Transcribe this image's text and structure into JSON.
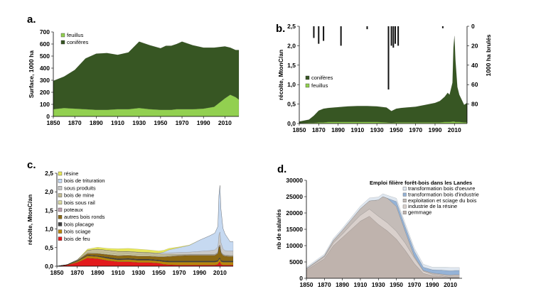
{
  "chart_data": [
    {
      "panel": "a.",
      "type": "area",
      "ylabel": "Surface, 1000 ha",
      "xlim": [
        1850,
        2023
      ],
      "ylim": [
        0,
        700
      ],
      "xticks": [
        1850,
        1870,
        1890,
        1910,
        1930,
        1950,
        1970,
        1990,
        2010
      ],
      "yticks": [
        0,
        100,
        200,
        300,
        400,
        500,
        600,
        700
      ],
      "legend": [
        {
          "name": "feuillus",
          "color": "#92d050"
        },
        {
          "name": "conifères",
          "color": "#375623"
        }
      ],
      "x": [
        1850,
        1860,
        1870,
        1880,
        1890,
        1900,
        1910,
        1920,
        1930,
        1940,
        1950,
        1955,
        1960,
        1965,
        1970,
        1980,
        1990,
        2000,
        2010,
        2015,
        2020,
        2023
      ],
      "series": [
        {
          "name": "feuillus",
          "color": "#92d050",
          "values": [
            60,
            70,
            65,
            60,
            55,
            55,
            60,
            60,
            70,
            60,
            55,
            55,
            55,
            60,
            60,
            60,
            65,
            80,
            150,
            180,
            160,
            140
          ]
        },
        {
          "name": "conifères",
          "color": "#375623",
          "values": [
            235,
            260,
            320,
            420,
            465,
            470,
            450,
            470,
            550,
            530,
            510,
            530,
            530,
            540,
            560,
            530,
            505,
            490,
            430,
            390,
            390,
            410
          ]
        }
      ]
    },
    {
      "panel": "b.",
      "type": "area",
      "ylabel": "récolte, MtonC/an",
      "y2label": "1000 ha brulés",
      "xlim": [
        1850,
        2023
      ],
      "ylim": [
        0,
        2.5
      ],
      "y2lim": [
        0,
        100
      ],
      "xticks": [
        1850,
        1870,
        1890,
        1910,
        1930,
        1950,
        1970,
        1990,
        2010
      ],
      "yticks": [
        "0,0",
        "0,5",
        "1,0",
        "1,5",
        "2,0",
        "2,5"
      ],
      "y2ticks": [
        0,
        20,
        40,
        60,
        80
      ],
      "legend": [
        {
          "name": "conifères",
          "color": "#375623"
        },
        {
          "name": "feuillus",
          "color": "#92d050"
        }
      ],
      "x": [
        1850,
        1860,
        1865,
        1870,
        1875,
        1880,
        1890,
        1900,
        1910,
        1920,
        1930,
        1940,
        1945,
        1950,
        1955,
        1960,
        1970,
        1980,
        1990,
        1995,
        2000,
        2003,
        2005,
        2008,
        2009,
        2010,
        2011,
        2013,
        2015,
        2020,
        2023
      ],
      "series": [
        {
          "name": "feuillus",
          "color": "#92d050",
          "values": [
            0.01,
            0.02,
            0.02,
            0.03,
            0.03,
            0.04,
            0.04,
            0.04,
            0.04,
            0.04,
            0.04,
            0.03,
            0.02,
            0.03,
            0.03,
            0.03,
            0.03,
            0.03,
            0.03,
            0.03,
            0.04,
            0.04,
            0.04,
            0.05,
            0.05,
            0.05,
            0.04,
            0.04,
            0.04,
            0.03,
            0.03
          ]
        },
        {
          "name": "conifères",
          "color": "#375623",
          "values": [
            0.04,
            0.08,
            0.18,
            0.3,
            0.35,
            0.36,
            0.38,
            0.4,
            0.41,
            0.41,
            0.4,
            0.38,
            0.3,
            0.35,
            0.37,
            0.38,
            0.4,
            0.45,
            0.5,
            0.55,
            0.65,
            0.75,
            0.7,
            1.0,
            1.9,
            2.2,
            1.6,
            0.9,
            0.7,
            0.45,
            0.5
          ]
        }
      ],
      "burned": {
        "x": [
          1865,
          1870,
          1875,
          1893,
          1920,
          1942,
          1945,
          1947,
          1949,
          1952,
          1998
        ],
        "values": [
          12,
          18,
          15,
          20,
          3,
          65,
          20,
          22,
          18,
          20,
          2
        ]
      }
    },
    {
      "panel": "c.",
      "type": "area",
      "ylabel": "récolte, MtonC/an",
      "xlim": [
        1850,
        2023
      ],
      "ylim": [
        0,
        2.5
      ],
      "xticks": [
        1850,
        1870,
        1890,
        1910,
        1930,
        1950,
        1970,
        1990,
        2010
      ],
      "yticks": [
        "0,0",
        "0,5",
        "1,0",
        "1,5",
        "2,0",
        "2,5"
      ],
      "x": [
        1850,
        1860,
        1870,
        1880,
        1890,
        1900,
        1910,
        1920,
        1930,
        1940,
        1950,
        1955,
        1960,
        1970,
        1980,
        1990,
        2000,
        2005,
        2008,
        2009,
        2010,
        2011,
        2013,
        2015,
        2020,
        2023
      ],
      "series": [
        {
          "name": "bois de feu",
          "color": "#e31a1c",
          "values": [
            0.0,
            0.03,
            0.1,
            0.22,
            0.2,
            0.15,
            0.12,
            0.12,
            0.1,
            0.1,
            0.08,
            0.05,
            0.04,
            0.03,
            0.03,
            0.03,
            0.03,
            0.03,
            0.05,
            0.1,
            0.12,
            0.05,
            0.03,
            0.03,
            0.03,
            0.03
          ]
        },
        {
          "name": "bois sciage",
          "color": "#b8860b",
          "values": [
            0.0,
            0.01,
            0.03,
            0.06,
            0.06,
            0.06,
            0.05,
            0.06,
            0.06,
            0.06,
            0.06,
            0.07,
            0.07,
            0.08,
            0.08,
            0.08,
            0.08,
            0.08,
            0.08,
            0.08,
            0.08,
            0.08,
            0.08,
            0.08,
            0.08,
            0.08
          ]
        },
        {
          "name": "bois placage",
          "color": "#404040",
          "values": [
            0.0,
            0.0,
            0.01,
            0.02,
            0.02,
            0.03,
            0.03,
            0.03,
            0.03,
            0.03,
            0.03,
            0.03,
            0.03,
            0.03,
            0.03,
            0.03,
            0.03,
            0.03,
            0.03,
            0.03,
            0.03,
            0.03,
            0.03,
            0.03,
            0.03,
            0.03
          ]
        },
        {
          "name": "autres bois ronds",
          "color": "#8b6914",
          "values": [
            0.0,
            0.0,
            0.01,
            0.04,
            0.06,
            0.07,
            0.08,
            0.08,
            0.08,
            0.08,
            0.08,
            0.1,
            0.12,
            0.14,
            0.15,
            0.15,
            0.15,
            0.15,
            0.18,
            0.3,
            0.3,
            0.2,
            0.15,
            0.13,
            0.12,
            0.12
          ]
        },
        {
          "name": "poteaux",
          "color": "#c0a0b0",
          "values": [
            0.0,
            0.0,
            0.0,
            0.01,
            0.01,
            0.01,
            0.01,
            0.01,
            0.01,
            0.01,
            0.01,
            0.01,
            0.01,
            0.01,
            0.01,
            0.01,
            0.01,
            0.01,
            0.01,
            0.02,
            0.02,
            0.01,
            0.01,
            0.01,
            0.01,
            0.01
          ]
        },
        {
          "name": "bois sous rail",
          "color": "#d9d9a0",
          "values": [
            0.0,
            0.0,
            0.0,
            0.02,
            0.03,
            0.03,
            0.03,
            0.03,
            0.03,
            0.03,
            0.02,
            0.02,
            0.02,
            0.01,
            0.01,
            0.01,
            0.01,
            0.01,
            0.01,
            0.01,
            0.01,
            0.01,
            0.01,
            0.01,
            0.01,
            0.01
          ]
        },
        {
          "name": "bois de mine",
          "color": "#c4bd97",
          "values": [
            0.0,
            0.0,
            0.02,
            0.06,
            0.08,
            0.08,
            0.08,
            0.06,
            0.06,
            0.05,
            0.05,
            0.04,
            0.03,
            0.02,
            0.01,
            0.01,
            0.01,
            0.01,
            0.01,
            0.01,
            0.01,
            0.01,
            0.01,
            0.01,
            0.01,
            0.01
          ]
        },
        {
          "name": "sous produits",
          "color": "#c8c8c8",
          "values": [
            0.0,
            0.0,
            0.0,
            0.0,
            0.0,
            0.0,
            0.0,
            0.01,
            0.01,
            0.01,
            0.02,
            0.03,
            0.04,
            0.05,
            0.06,
            0.08,
            0.1,
            0.12,
            0.15,
            0.3,
            0.35,
            0.25,
            0.15,
            0.12,
            0.12,
            0.12
          ]
        },
        {
          "name": "bois de trituration",
          "color": "#c6d9f1",
          "values": [
            0.0,
            0.0,
            0.0,
            0.0,
            0.0,
            0.0,
            0.0,
            0.0,
            0.0,
            0.0,
            0.0,
            0.03,
            0.08,
            0.13,
            0.18,
            0.3,
            0.4,
            0.45,
            0.55,
            1.05,
            1.25,
            0.9,
            0.55,
            0.45,
            0.25,
            0.25
          ]
        },
        {
          "name": "résine",
          "color": "#e8e85a",
          "values": [
            0.0,
            0.0,
            0.0,
            0.03,
            0.05,
            0.05,
            0.07,
            0.08,
            0.08,
            0.07,
            0.06,
            0.05,
            0.04,
            0.02,
            0.01,
            0.0,
            0.0,
            0.0,
            0.0,
            0.0,
            0.0,
            0.0,
            0.0,
            0.0,
            0.0,
            0.0
          ]
        }
      ]
    },
    {
      "panel": "d.",
      "type": "area",
      "title": "Emploi filière forêt-bois dans les Landes",
      "ylabel": "nb de salariés",
      "xlim": [
        1850,
        2023
      ],
      "ylim": [
        0,
        30000
      ],
      "xticks": [
        1850,
        1870,
        1890,
        1910,
        1930,
        1950,
        1970,
        1990,
        2010
      ],
      "yticks": [
        0,
        5000,
        10000,
        15000,
        20000,
        25000,
        30000
      ],
      "x": [
        1850,
        1870,
        1880,
        1890,
        1900,
        1910,
        1920,
        1930,
        1935,
        1940,
        1950,
        1960,
        1970,
        1980,
        1990,
        2000,
        2005,
        2010,
        2015,
        2020
      ],
      "series": [
        {
          "name": "gemmage",
          "color": "#bfb3ad",
          "values": [
            2500,
            6000,
            10000,
            12500,
            15000,
            17500,
            19000,
            16500,
            15500,
            14500,
            12000,
            8500,
            4500,
            1500,
            800,
            500,
            300,
            200,
            200,
            200
          ]
        },
        {
          "name": "industrie de la résine",
          "color": "#d9d0cc",
          "values": [
            300,
            500,
            800,
            1000,
            1500,
            1800,
            2200,
            2500,
            2500,
            2500,
            2400,
            2200,
            1700,
            700,
            400,
            300,
            200,
            100,
            100,
            100
          ]
        },
        {
          "name": "exploitation et sciage du bois",
          "color": "#c4bcb8",
          "values": [
            200,
            400,
            800,
            1200,
            1500,
            2000,
            2500,
            5000,
            7000,
            7500,
            7600,
            3500,
            500,
            200,
            400,
            500,
            600,
            700,
            800,
            800
          ]
        },
        {
          "name": "transformation bois d'industrie",
          "color": "#95b3d7",
          "values": [
            0,
            0,
            0,
            0,
            0,
            0,
            0,
            0,
            0,
            0,
            1500,
            1500,
            1600,
            1000,
            1000,
            1200,
            1300,
            1300,
            1300,
            1300
          ]
        },
        {
          "name": "transformation bois d'oeuvre",
          "color": "#dfe7f0",
          "values": [
            400,
            500,
            600,
            600,
            700,
            800,
            900,
            900,
            900,
            900,
            1000,
            1000,
            900,
            900,
            800,
            900,
            1000,
            1000,
            900,
            900
          ]
        }
      ]
    }
  ]
}
